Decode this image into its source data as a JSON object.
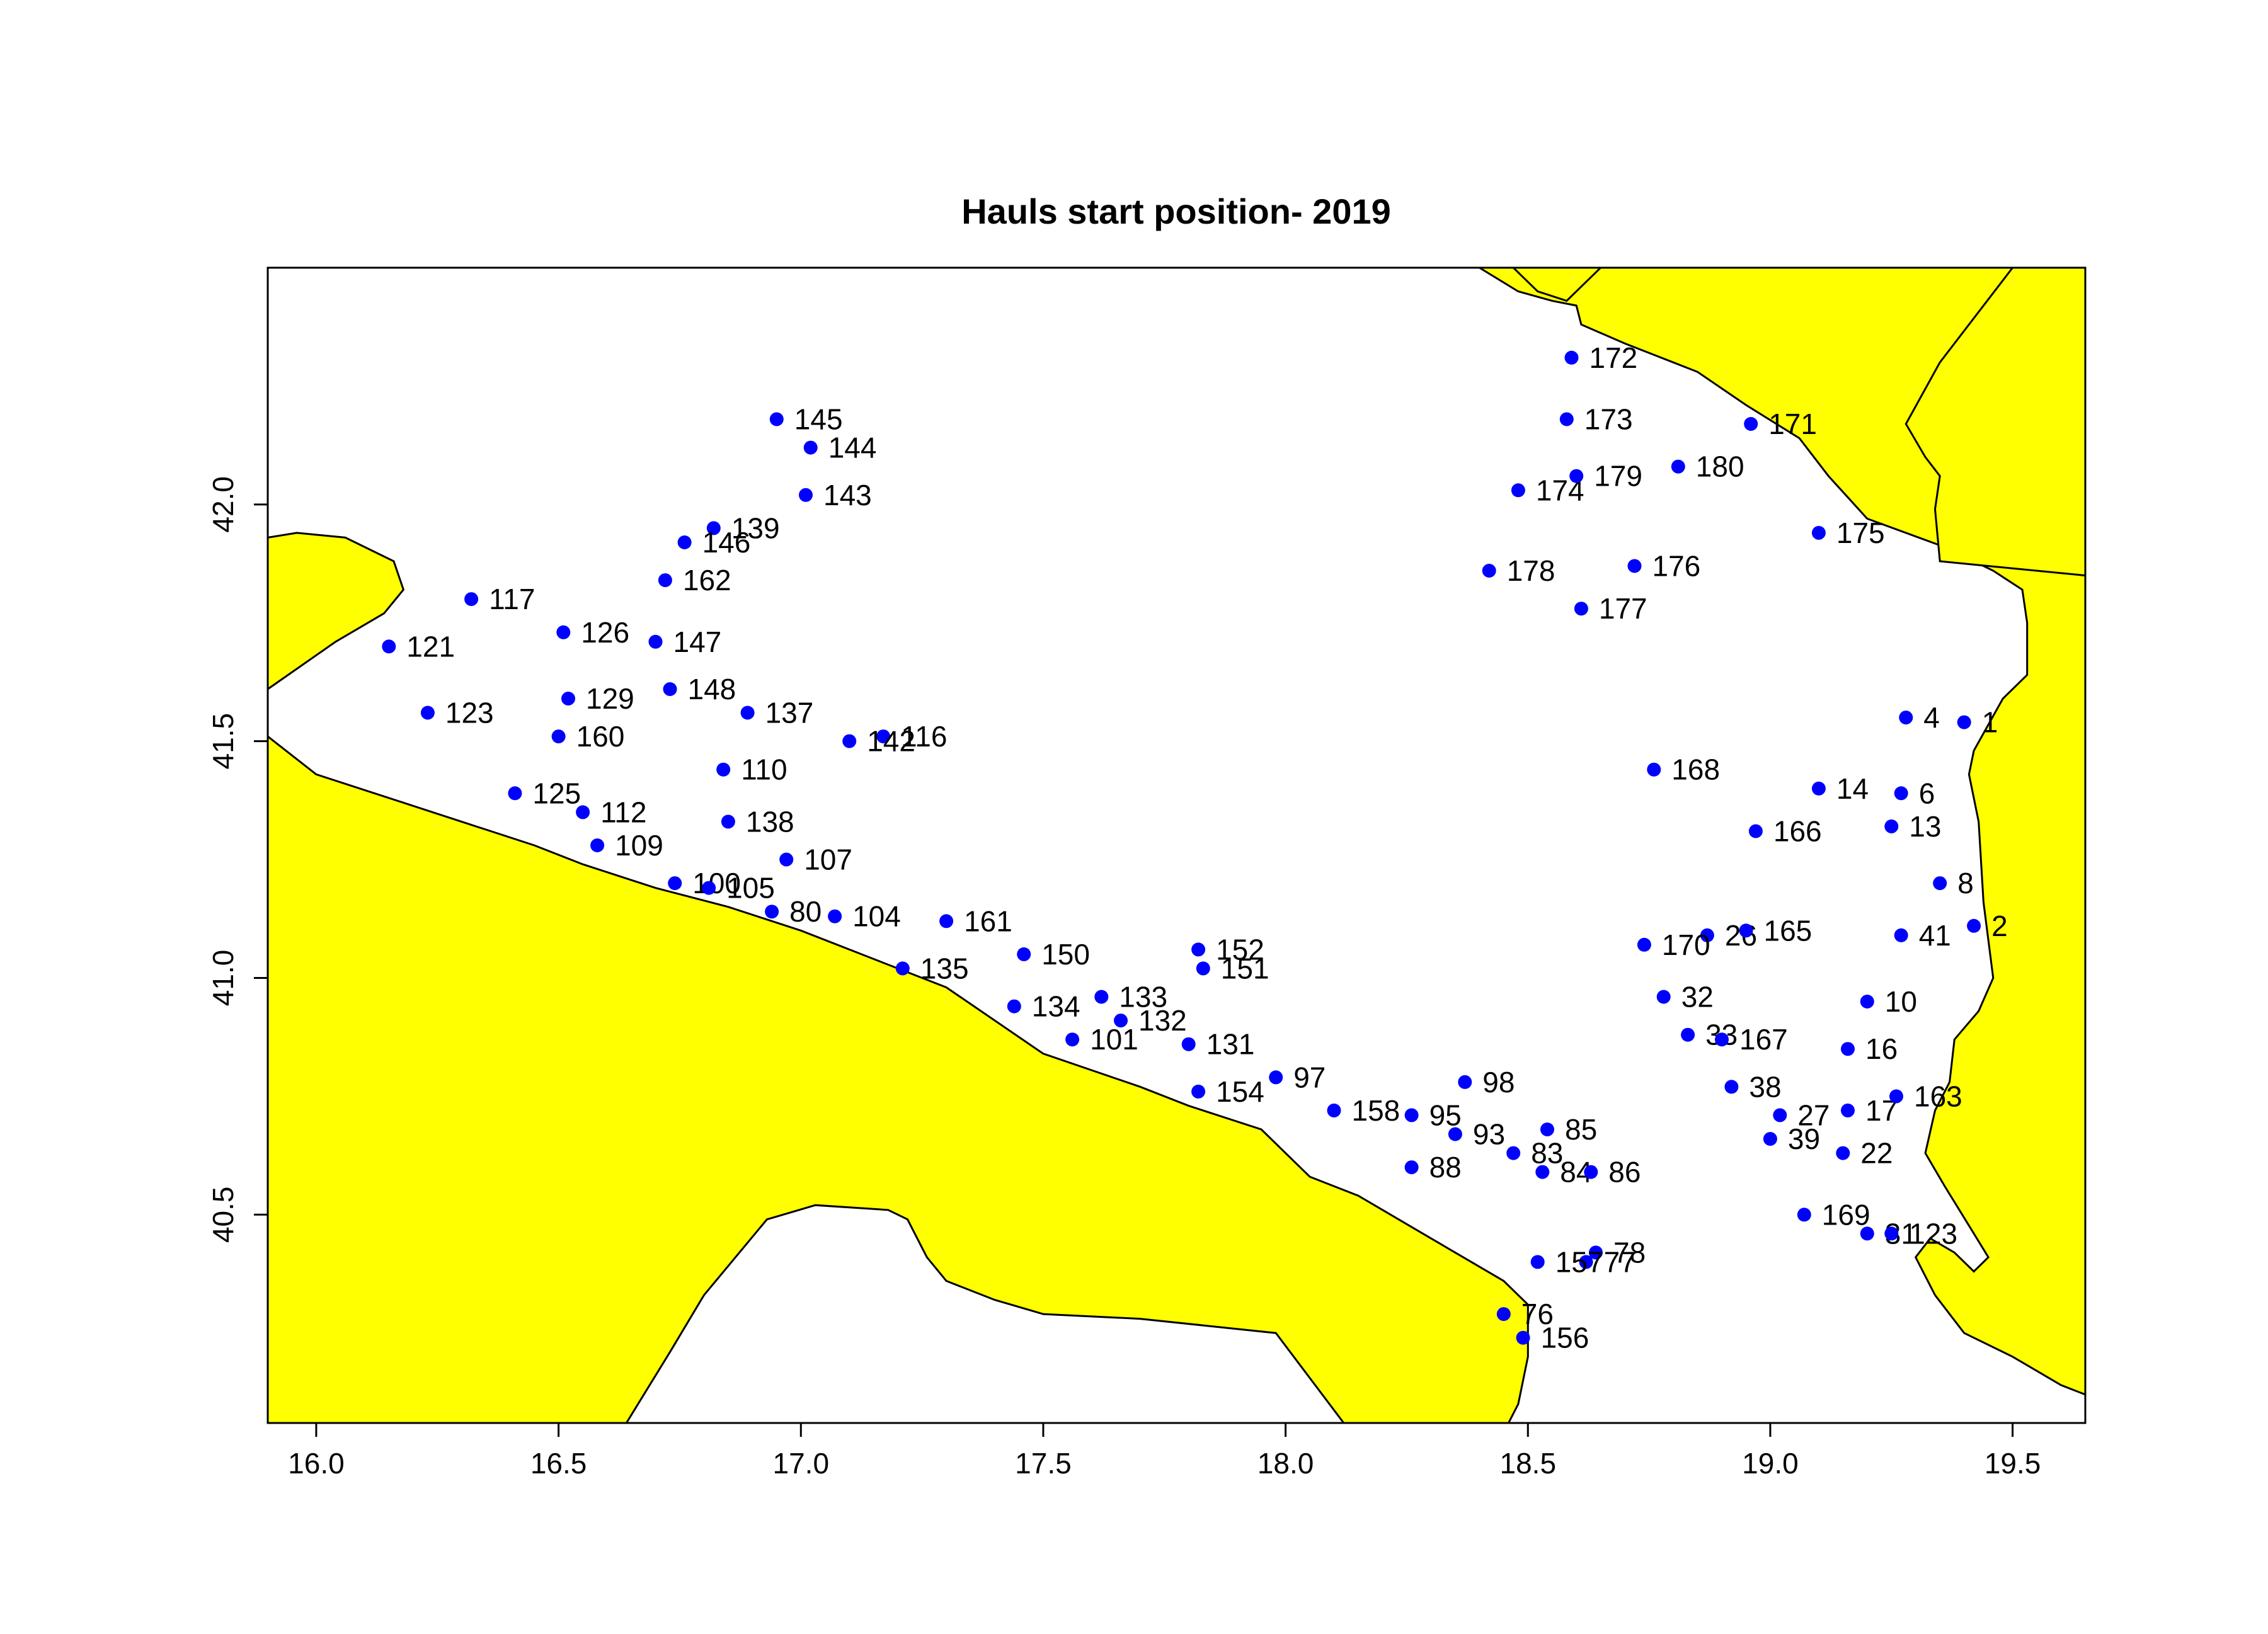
{
  "title": "Hauls start position-  2019",
  "colors": {
    "land": "#ffff00",
    "coast": "#000000",
    "points": "#0000ff",
    "background": "#ffffff"
  },
  "chart_data": {
    "type": "scatter",
    "title": "Hauls start position-  2019",
    "xlabel": "",
    "ylabel": "",
    "xlim": [
      15.9,
      19.65
    ],
    "ylim": [
      40.06,
      42.5
    ],
    "xticks": [
      "16.0",
      "16.5",
      "17.0",
      "17.5",
      "18.0",
      "18.5",
      "19.0",
      "19.5"
    ],
    "yticks": [
      "40.5",
      "41.0",
      "41.5",
      "42.0"
    ],
    "grid": false,
    "legend": "none",
    "land_polygons": [
      [
        [
          15.9,
          41.93
        ],
        [
          15.96,
          41.94
        ],
        [
          16.06,
          41.93
        ],
        [
          16.16,
          41.88
        ],
        [
          16.18,
          41.82
        ],
        [
          16.14,
          41.77
        ],
        [
          16.04,
          41.71
        ],
        [
          15.9,
          41.61
        ]
      ],
      [
        [
          15.9,
          41.51
        ],
        [
          16.0,
          41.43
        ],
        [
          16.15,
          41.38
        ],
        [
          16.3,
          41.33
        ],
        [
          16.45,
          41.28
        ],
        [
          16.55,
          41.24
        ],
        [
          16.7,
          41.19
        ],
        [
          16.85,
          41.15
        ],
        [
          17.0,
          41.1
        ],
        [
          17.15,
          41.04
        ],
        [
          17.3,
          40.98
        ],
        [
          17.5,
          40.84
        ],
        [
          17.7,
          40.77
        ],
        [
          17.8,
          40.73
        ],
        [
          17.95,
          40.68
        ],
        [
          18.05,
          40.58
        ],
        [
          18.15,
          40.54
        ],
        [
          18.3,
          40.45
        ],
        [
          18.45,
          40.36
        ],
        [
          18.5,
          40.31
        ],
        [
          18.5,
          40.2
        ],
        [
          18.48,
          40.1
        ],
        [
          18.46,
          40.06
        ],
        [
          18.12,
          40.06
        ],
        [
          17.98,
          40.25
        ],
        [
          17.7,
          40.28
        ],
        [
          17.5,
          40.29
        ],
        [
          17.4,
          40.32
        ],
        [
          17.3,
          40.36
        ],
        [
          17.26,
          40.41
        ],
        [
          17.24,
          40.45
        ],
        [
          17.22,
          40.49
        ],
        [
          17.18,
          40.51
        ],
        [
          17.03,
          40.52
        ],
        [
          16.93,
          40.49
        ],
        [
          16.8,
          40.33
        ],
        [
          16.73,
          40.21
        ],
        [
          16.64,
          40.06
        ],
        [
          15.9,
          40.06
        ]
      ],
      [
        [
          18.4,
          42.5
        ],
        [
          18.48,
          42.45
        ],
        [
          18.55,
          42.43
        ],
        [
          18.6,
          42.42
        ],
        [
          18.61,
          42.38
        ],
        [
          18.7,
          42.34
        ],
        [
          18.85,
          42.28
        ],
        [
          18.95,
          42.21
        ],
        [
          19.06,
          42.14
        ],
        [
          19.12,
          42.06
        ],
        [
          19.2,
          41.97
        ],
        [
          19.36,
          41.91
        ],
        [
          19.46,
          41.86
        ],
        [
          19.52,
          41.82
        ],
        [
          19.53,
          41.75
        ],
        [
          19.53,
          41.64
        ],
        [
          19.48,
          41.59
        ],
        [
          19.42,
          41.48
        ],
        [
          19.41,
          41.43
        ],
        [
          19.43,
          41.33
        ],
        [
          19.44,
          41.16
        ],
        [
          19.46,
          41.0
        ],
        [
          19.43,
          40.93
        ],
        [
          19.38,
          40.87
        ],
        [
          19.37,
          40.78
        ],
        [
          19.34,
          40.72
        ],
        [
          19.32,
          40.63
        ],
        [
          19.36,
          40.56
        ],
        [
          19.42,
          40.46
        ],
        [
          19.45,
          40.41
        ],
        [
          19.42,
          40.38
        ],
        [
          19.38,
          40.42
        ],
        [
          19.33,
          40.45
        ],
        [
          19.3,
          40.41
        ],
        [
          19.34,
          40.33
        ],
        [
          19.4,
          40.25
        ],
        [
          19.5,
          40.2
        ],
        [
          19.6,
          40.14
        ],
        [
          19.65,
          40.12
        ],
        [
          19.65,
          42.5
        ]
      ],
      [
        [
          18.47,
          42.5
        ],
        [
          18.52,
          42.45
        ],
        [
          18.58,
          42.43
        ],
        [
          18.65,
          42.5
        ]
      ],
      [
        [
          19.65,
          42.5
        ],
        [
          19.5,
          42.5
        ],
        [
          19.35,
          42.3
        ],
        [
          19.28,
          42.17
        ],
        [
          19.32,
          42.1
        ],
        [
          19.35,
          42.06
        ],
        [
          19.34,
          41.99
        ],
        [
          19.35,
          41.88
        ],
        [
          19.65,
          41.85
        ]
      ]
    ],
    "points": [
      {
        "label": "1",
        "x": 19.4,
        "y": 41.54
      },
      {
        "label": "2",
        "x": 19.42,
        "y": 41.11
      },
      {
        "label": "4",
        "x": 19.28,
        "y": 41.55
      },
      {
        "label": "6",
        "x": 19.27,
        "y": 41.39
      },
      {
        "label": "8",
        "x": 19.35,
        "y": 41.2
      },
      {
        "label": "10",
        "x": 19.2,
        "y": 40.95
      },
      {
        "label": "13",
        "x": 19.25,
        "y": 41.32
      },
      {
        "label": "14",
        "x": 19.1,
        "y": 41.4
      },
      {
        "label": "16",
        "x": 19.16,
        "y": 40.85
      },
      {
        "label": "17",
        "x": 19.16,
        "y": 40.72
      },
      {
        "label": "22",
        "x": 19.15,
        "y": 40.63
      },
      {
        "label": "26",
        "x": 18.87,
        "y": 41.09
      },
      {
        "label": "27",
        "x": 19.02,
        "y": 40.71
      },
      {
        "label": "31",
        "x": 19.2,
        "y": 40.46
      },
      {
        "label": "32",
        "x": 18.78,
        "y": 40.96
      },
      {
        "label": "33",
        "x": 18.83,
        "y": 40.88
      },
      {
        "label": "38",
        "x": 18.92,
        "y": 40.77
      },
      {
        "label": "39",
        "x": 19.0,
        "y": 40.66
      },
      {
        "label": "41",
        "x": 19.27,
        "y": 41.09
      },
      {
        "label": "76",
        "x": 18.45,
        "y": 40.29
      },
      {
        "label": "77",
        "x": 18.62,
        "y": 40.4
      },
      {
        "label": "78",
        "x": 18.64,
        "y": 40.42
      },
      {
        "label": "80",
        "x": 16.94,
        "y": 41.14
      },
      {
        "label": "83",
        "x": 18.47,
        "y": 40.63
      },
      {
        "label": "84",
        "x": 18.53,
        "y": 40.59
      },
      {
        "label": "85",
        "x": 18.54,
        "y": 40.68
      },
      {
        "label": "86",
        "x": 18.63,
        "y": 40.59
      },
      {
        "label": "88",
        "x": 18.26,
        "y": 40.6
      },
      {
        "label": "93",
        "x": 18.35,
        "y": 40.67
      },
      {
        "label": "95",
        "x": 18.26,
        "y": 40.71
      },
      {
        "label": "97",
        "x": 17.98,
        "y": 40.79
      },
      {
        "label": "98",
        "x": 18.37,
        "y": 40.78
      },
      {
        "label": "100",
        "x": 16.74,
        "y": 41.2
      },
      {
        "label": "101",
        "x": 17.56,
        "y": 40.87
      },
      {
        "label": "104",
        "x": 17.07,
        "y": 41.13
      },
      {
        "label": "105",
        "x": 16.81,
        "y": 41.19
      },
      {
        "label": "107",
        "x": 16.97,
        "y": 41.25
      },
      {
        "label": "109",
        "x": 16.58,
        "y": 41.28
      },
      {
        "label": "110",
        "x": 16.84,
        "y": 41.44
      },
      {
        "label": "112",
        "x": 16.55,
        "y": 41.35
      },
      {
        "label": "116",
        "x": 17.17,
        "y": 41.51
      },
      {
        "label": "117",
        "x": 16.32,
        "y": 41.8
      },
      {
        "label": "121",
        "x": 16.15,
        "y": 41.7
      },
      {
        "label": "123",
        "x": 16.23,
        "y": 41.56
      },
      {
        "label": "123",
        "x": 19.25,
        "y": 40.46
      },
      {
        "label": "125",
        "x": 16.41,
        "y": 41.39
      },
      {
        "label": "126",
        "x": 16.51,
        "y": 41.73
      },
      {
        "label": "129",
        "x": 16.52,
        "y": 41.59
      },
      {
        "label": "131",
        "x": 17.8,
        "y": 40.86
      },
      {
        "label": "132",
        "x": 17.66,
        "y": 40.91
      },
      {
        "label": "133",
        "x": 17.62,
        "y": 40.96
      },
      {
        "label": "134",
        "x": 17.44,
        "y": 40.94
      },
      {
        "label": "135",
        "x": 17.21,
        "y": 41.02
      },
      {
        "label": "137",
        "x": 16.89,
        "y": 41.56
      },
      {
        "label": "138",
        "x": 16.85,
        "y": 41.33
      },
      {
        "label": "139",
        "x": 16.82,
        "y": 41.95
      },
      {
        "label": "142",
        "x": 17.1,
        "y": 41.5
      },
      {
        "label": "143",
        "x": 17.01,
        "y": 42.02
      },
      {
        "label": "144",
        "x": 17.02,
        "y": 42.12
      },
      {
        "label": "145",
        "x": 16.95,
        "y": 42.18
      },
      {
        "label": "146",
        "x": 16.76,
        "y": 41.92
      },
      {
        "label": "147",
        "x": 16.7,
        "y": 41.71
      },
      {
        "label": "148",
        "x": 16.73,
        "y": 41.61
      },
      {
        "label": "150",
        "x": 17.46,
        "y": 41.05
      },
      {
        "label": "151",
        "x": 17.83,
        "y": 41.02
      },
      {
        "label": "152",
        "x": 17.82,
        "y": 41.06
      },
      {
        "label": "154",
        "x": 17.82,
        "y": 40.76
      },
      {
        "label": "156",
        "x": 18.49,
        "y": 40.24
      },
      {
        "label": "157",
        "x": 18.52,
        "y": 40.4
      },
      {
        "label": "158",
        "x": 18.1,
        "y": 40.72
      },
      {
        "label": "160",
        "x": 16.5,
        "y": 41.51
      },
      {
        "label": "161",
        "x": 17.3,
        "y": 41.12
      },
      {
        "label": "162",
        "x": 16.72,
        "y": 41.84
      },
      {
        "label": "163",
        "x": 19.26,
        "y": 40.75
      },
      {
        "label": "165",
        "x": 18.95,
        "y": 41.1
      },
      {
        "label": "166",
        "x": 18.97,
        "y": 41.31
      },
      {
        "label": "167",
        "x": 18.9,
        "y": 40.87
      },
      {
        "label": "168",
        "x": 18.76,
        "y": 41.44
      },
      {
        "label": "169",
        "x": 19.07,
        "y": 40.5
      },
      {
        "label": "170",
        "x": 18.74,
        "y": 41.07
      },
      {
        "label": "171",
        "x": 18.96,
        "y": 42.17
      },
      {
        "label": "172",
        "x": 18.59,
        "y": 42.31
      },
      {
        "label": "173",
        "x": 18.58,
        "y": 42.18
      },
      {
        "label": "174",
        "x": 18.48,
        "y": 42.03
      },
      {
        "label": "175",
        "x": 19.1,
        "y": 41.94
      },
      {
        "label": "176",
        "x": 18.72,
        "y": 41.87
      },
      {
        "label": "177",
        "x": 18.61,
        "y": 41.78
      },
      {
        "label": "178",
        "x": 18.42,
        "y": 41.86
      },
      {
        "label": "179",
        "x": 18.6,
        "y": 42.06
      },
      {
        "label": "180",
        "x": 18.81,
        "y": 42.08
      }
    ]
  }
}
